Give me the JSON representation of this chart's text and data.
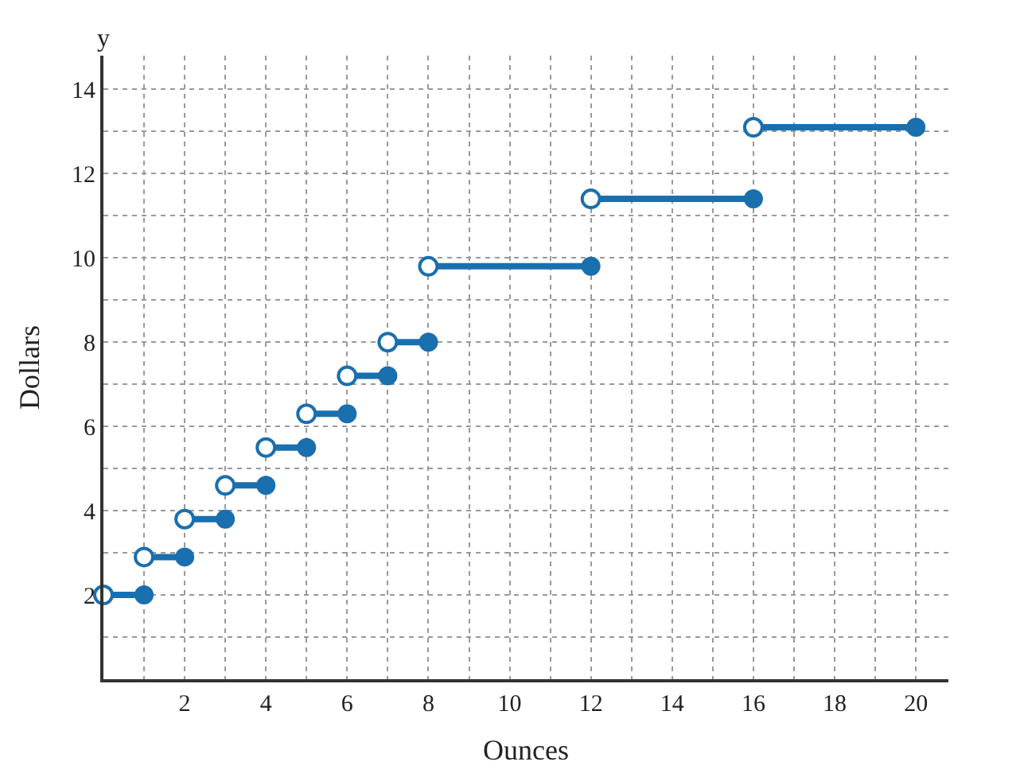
{
  "chart_data": {
    "type": "line",
    "xlabel": "Ounces",
    "ylabel": "Dollars",
    "annotations": [
      "y"
    ],
    "x": [
      0,
      1,
      null,
      1,
      2,
      null,
      2,
      3,
      null,
      3,
      4,
      null,
      4,
      5,
      null,
      5,
      6,
      null,
      6,
      7,
      null,
      7,
      8,
      null,
      8,
      12,
      null,
      12,
      16,
      null,
      16,
      20
    ],
    "values": [
      2.0,
      2.0,
      null,
      2.9,
      2.9,
      null,
      3.8,
      3.8,
      null,
      4.6,
      4.6,
      null,
      5.5,
      5.5,
      null,
      6.3,
      6.3,
      null,
      7.2,
      7.2,
      null,
      8.0,
      8.0,
      null,
      9.8,
      9.8,
      null,
      11.4,
      11.4,
      null,
      13.1,
      13.1
    ],
    "color": "#1a6fae",
    "marker": "circle",
    "grid": true,
    "xlim": [
      0,
      20.8
    ],
    "ylim": [
      0,
      14.8
    ],
    "xticks": [
      2,
      4,
      6,
      8,
      10,
      12,
      14,
      16,
      18,
      20
    ],
    "yticks": [
      2,
      4,
      6,
      8,
      10,
      12,
      14
    ]
  }
}
